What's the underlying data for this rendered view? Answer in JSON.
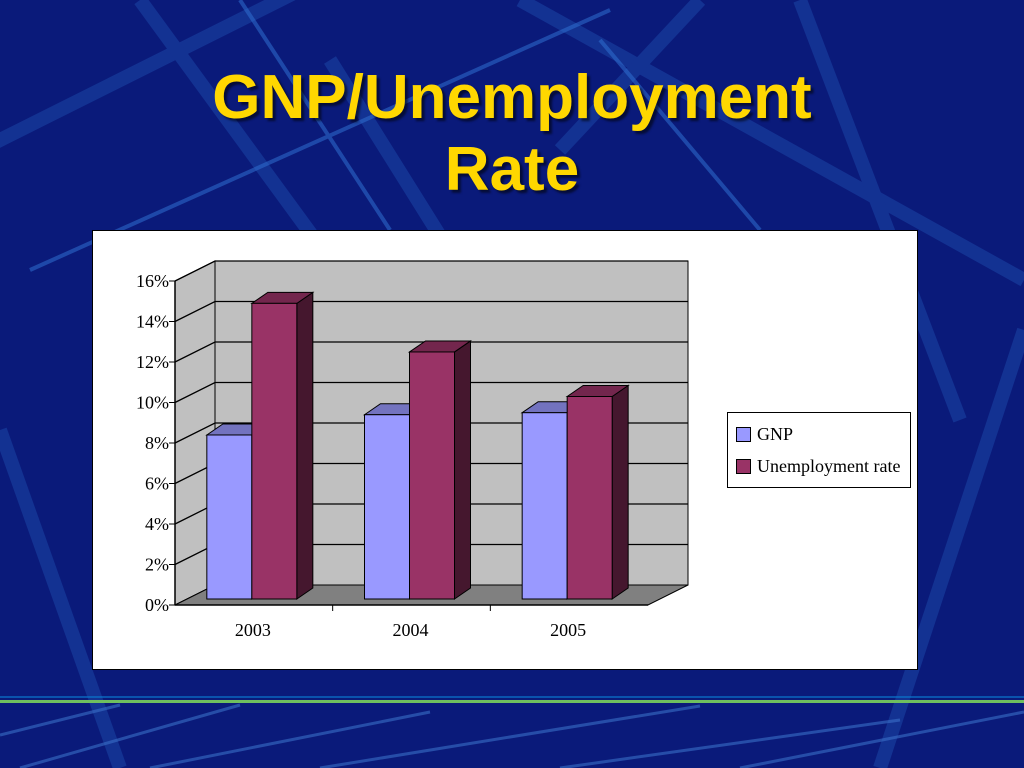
{
  "slide": {
    "title_line1": "GNP/Unemployment",
    "title_line2": "Rate"
  },
  "colors": {
    "background": "#0a1a7a",
    "title": "#ffd700",
    "gnp": "#9999ff",
    "unemployment": "#993366",
    "plot_wall": "#c0c0c0",
    "plot_floor": "#808080"
  },
  "chart_data": {
    "type": "bar",
    "categories": [
      "2003",
      "2004",
      "2005"
    ],
    "series": [
      {
        "name": "GNP",
        "values": [
          8.1,
          9.1,
          9.2
        ]
      },
      {
        "name": "Unemployment rate",
        "values": [
          14.6,
          12.2,
          10.0
        ]
      }
    ],
    "yticks": [
      "0%",
      "2%",
      "4%",
      "6%",
      "8%",
      "10%",
      "12%",
      "14%",
      "16%"
    ],
    "ylim": [
      0,
      16
    ],
    "grid": true,
    "three_d": true,
    "legend_position": "right"
  }
}
